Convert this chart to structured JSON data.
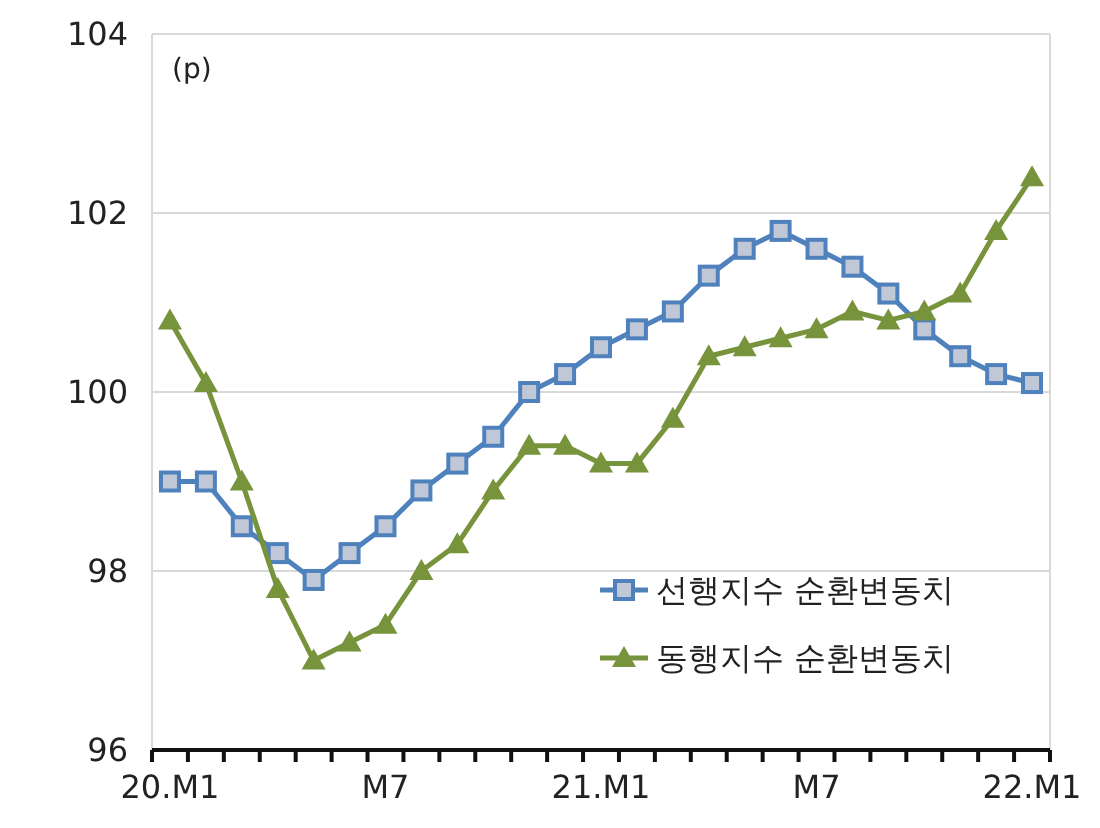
{
  "chart_data": {
    "type": "line",
    "ylabel": "(p)",
    "categories": [
      "20.M1",
      null,
      null,
      null,
      null,
      null,
      "M7",
      null,
      null,
      null,
      null,
      null,
      "21.M1",
      null,
      null,
      null,
      null,
      null,
      "M7",
      null,
      null,
      null,
      null,
      null,
      "22.M1"
    ],
    "series": [
      {
        "name": "선행지수 순환변동치",
        "color": "#4f81bd",
        "marker": "square",
        "values": [
          99.0,
          99.0,
          98.5,
          98.2,
          97.9,
          98.2,
          98.5,
          98.9,
          99.2,
          99.5,
          100.0,
          100.2,
          100.5,
          100.7,
          100.9,
          101.3,
          101.6,
          101.8,
          101.6,
          101.4,
          101.1,
          100.7,
          100.4,
          100.2,
          100.1
        ]
      },
      {
        "name": "동행지수 순환변동치",
        "color": "#77933c",
        "marker": "triangle",
        "values": [
          100.8,
          100.1,
          99.0,
          97.8,
          97.0,
          97.2,
          97.4,
          98.0,
          98.3,
          98.9,
          99.4,
          99.4,
          99.2,
          99.2,
          99.7,
          100.4,
          100.5,
          100.6,
          100.7,
          100.9,
          100.8,
          100.9,
          101.1,
          101.8,
          102.4
        ]
      }
    ],
    "ylim": [
      96,
      104
    ],
    "yticks": [
      96,
      98,
      100,
      102,
      104
    ],
    "grid": "y",
    "legend": "bottom right"
  }
}
